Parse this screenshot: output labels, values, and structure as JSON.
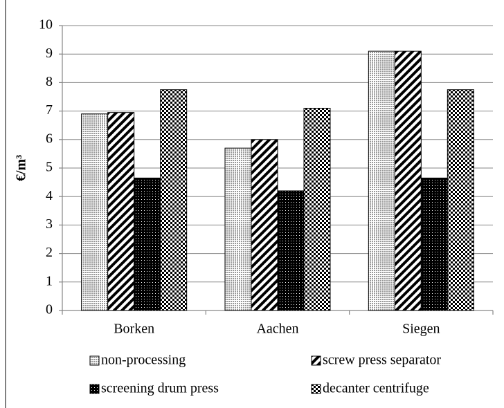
{
  "chart_data": {
    "type": "bar",
    "y_label": "€/m³",
    "categories": [
      "Borken",
      "Aachen",
      "Siegen"
    ],
    "series": [
      {
        "name": "non-processing",
        "color": "#999999",
        "pattern": "dots",
        "values": [
          6.9,
          5.7,
          9.1
        ]
      },
      {
        "name": "screw press separator",
        "color": "#000000",
        "pattern": "diagonal",
        "values": [
          6.95,
          6.0,
          9.1
        ]
      },
      {
        "name": "screening drum press",
        "color": "#000000",
        "pattern": "dense",
        "values": [
          4.65,
          4.2,
          4.65
        ]
      },
      {
        "name": "decanter centrifuge",
        "color": "#000000",
        "pattern": "checker",
        "values": [
          7.75,
          7.1,
          7.75
        ]
      }
    ],
    "ylim": [
      0,
      10
    ],
    "yticks": [
      0,
      1,
      2,
      3,
      4,
      5,
      6,
      7,
      8,
      9,
      10
    ],
    "grid": true,
    "legend": "bottom"
  }
}
